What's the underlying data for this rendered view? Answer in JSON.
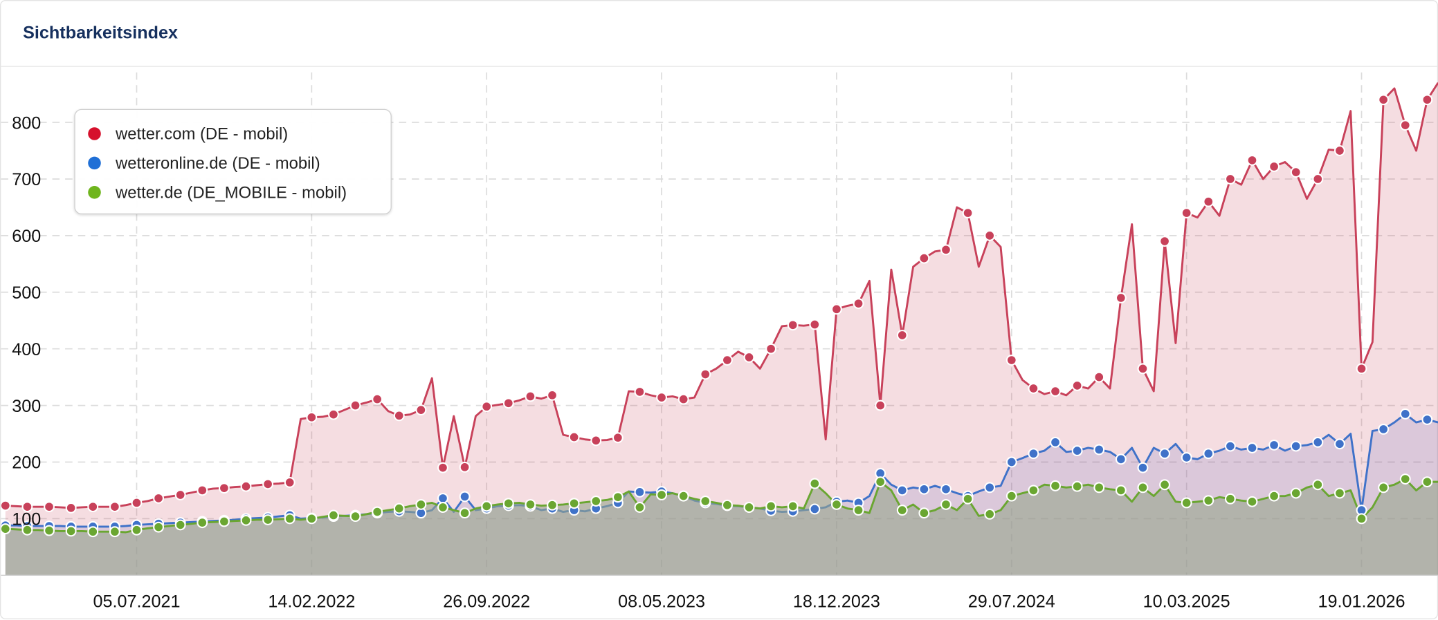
{
  "header": {
    "title": "Sichtbarkeitsindex"
  },
  "chart_data": {
    "type": "area",
    "title": "",
    "xlabel": "",
    "ylabel": "",
    "ylim": [
      0,
      880
    ],
    "y_ticks": [
      100,
      200,
      300,
      400,
      500,
      600,
      700,
      800
    ],
    "x_ticks": [
      {
        "index": 12,
        "label": "05.07.2021"
      },
      {
        "index": 28,
        "label": "14.02.2022"
      },
      {
        "index": 44,
        "label": "26.09.2022"
      },
      {
        "index": 60,
        "label": "08.05.2023"
      },
      {
        "index": 76,
        "label": "18.12.2023"
      },
      {
        "index": 92,
        "label": "29.07.2024"
      },
      {
        "index": 108,
        "label": "10.03.2025"
      },
      {
        "index": 124,
        "label": "19.01.2026"
      }
    ],
    "grid": true,
    "legend_position": "top-left",
    "series": [
      {
        "name": "wetter.com (DE - mobil)",
        "color": "#c8415a",
        "fill": "rgba(200,65,90,0.18)",
        "values": [
          123,
          122,
          121,
          121,
          121,
          120,
          119,
          120,
          121,
          121,
          121,
          124,
          128,
          131,
          136,
          139,
          142,
          146,
          150,
          153,
          154,
          156,
          157,
          159,
          161,
          162,
          164,
          276,
          279,
          280,
          284,
          292,
          300,
          305,
          311,
          290,
          282,
          284,
          292,
          348,
          190,
          281,
          191,
          281,
          298,
          301,
          304,
          309,
          316,
          312,
          318,
          248,
          244,
          240,
          238,
          239,
          243,
          325,
          324,
          318,
          314,
          316,
          311,
          314,
          355,
          365,
          380,
          395,
          385,
          365,
          400,
          440,
          442,
          441,
          443,
          240,
          470,
          476,
          480,
          520,
          300,
          540,
          424,
          545,
          560,
          572,
          575,
          650,
          640,
          545,
          600,
          580,
          380,
          345,
          330,
          320,
          325,
          318,
          335,
          330,
          350,
          330,
          490,
          620,
          365,
          325,
          590,
          410,
          640,
          632,
          660,
          635,
          700,
          690,
          733,
          700,
          722,
          730,
          712,
          665,
          700,
          752,
          750,
          820,
          365,
          412,
          840,
          860,
          795,
          750,
          840,
          870
        ]
      },
      {
        "name": "wetteronline.de (DE - mobil)",
        "color": "#3f72c9",
        "fill": "rgba(90,95,185,0.16)",
        "values": [
          88,
          88,
          87,
          87,
          87,
          87,
          86,
          86,
          86,
          86,
          86,
          87,
          89,
          90,
          91,
          92,
          93,
          94,
          95,
          96,
          97,
          98,
          100,
          101,
          102,
          104,
          106,
          100,
          101,
          102,
          104,
          105,
          106,
          108,
          110,
          112,
          113,
          112,
          110,
          115,
          136,
          112,
          139,
          115,
          118,
          122,
          123,
          124,
          122,
          115,
          118,
          112,
          115,
          113,
          118,
          122,
          128,
          148,
          147,
          146,
          148,
          145,
          140,
          132,
          128,
          126,
          123,
          122,
          120,
          118,
          114,
          112,
          113,
          115,
          117,
          120,
          130,
          132,
          128,
          140,
          180,
          160,
          150,
          155,
          152,
          158,
          152,
          145,
          140,
          148,
          155,
          158,
          200,
          207,
          215,
          220,
          235,
          218,
          220,
          225,
          222,
          218,
          205,
          225,
          190,
          225,
          215,
          232,
          208,
          205,
          215,
          220,
          228,
          222,
          225,
          222,
          230,
          220,
          228,
          230,
          235,
          248,
          232,
          250,
          115,
          255,
          258,
          270,
          285,
          270,
          275,
          270
        ]
      },
      {
        "name": "wetter.de (DE_MOBILE - mobil)",
        "color": "#6aa631",
        "fill": "rgba(150,165,140,0.6)",
        "values": [
          82,
          81,
          80,
          80,
          79,
          78,
          78,
          78,
          77,
          77,
          77,
          76,
          80,
          83,
          85,
          87,
          89,
          91,
          93,
          94,
          95,
          96,
          97,
          98,
          98,
          99,
          100,
          98,
          100,
          103,
          106,
          105,
          104,
          108,
          112,
          115,
          118,
          122,
          125,
          128,
          120,
          115,
          110,
          118,
          122,
          125,
          127,
          128,
          125,
          123,
          124,
          125,
          127,
          129,
          131,
          133,
          138,
          148,
          120,
          143,
          142,
          145,
          140,
          135,
          131,
          128,
          124,
          123,
          120,
          118,
          122,
          120,
          122,
          118,
          162,
          145,
          125,
          118,
          115,
          110,
          165,
          150,
          115,
          125,
          110,
          115,
          125,
          115,
          135,
          105,
          108,
          115,
          140,
          145,
          150,
          160,
          158,
          155,
          157,
          160,
          155,
          152,
          150,
          130,
          155,
          140,
          160,
          130,
          128,
          130,
          132,
          138,
          135,
          132,
          130,
          135,
          140,
          140,
          145,
          155,
          160,
          140,
          145,
          150,
          100,
          120,
          155,
          160,
          170,
          150,
          165,
          165
        ]
      }
    ]
  }
}
